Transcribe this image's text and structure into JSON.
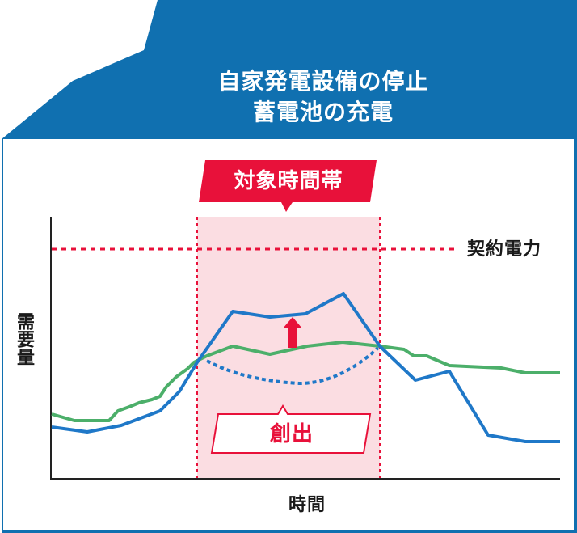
{
  "heading": {
    "line1": "自家発電設備の停止",
    "line2": "蓄電池の充電"
  },
  "target_period_label": "対象時間帯",
  "generation_label": "創出",
  "contract_power_label": "契約電力",
  "y_axis_label": "需要量",
  "x_axis_label": "時間",
  "colors": {
    "frame_blue": "#1070b0",
    "band_pink": "#fbdde2",
    "accent_red": "#e8113a",
    "demand_blue": "#1f78c8",
    "green": "#4caf6a"
  }
}
